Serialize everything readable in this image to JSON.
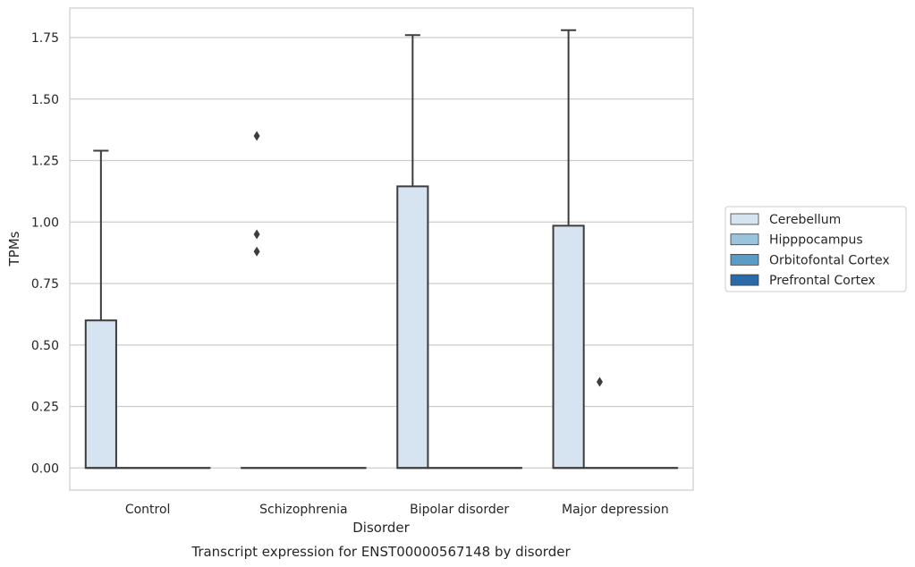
{
  "chart_data": {
    "type": "box",
    "xlabel": "Disorder",
    "ylabel": "TPMs",
    "caption": "Transcript expression for ENST00000567148 by disorder",
    "categories": [
      "Control",
      "Schizophrenia",
      "Bipolar disorder",
      "Major depression"
    ],
    "yticks": [
      "0.00",
      "0.25",
      "0.50",
      "0.75",
      "1.00",
      "1.25",
      "1.50",
      "1.75"
    ],
    "ylim": [
      -0.09,
      1.87
    ],
    "grid": true,
    "legend_position": "right",
    "series": [
      {
        "name": "Cerebellum",
        "color": "#d6e3f0",
        "boxes": [
          {
            "q1": 0,
            "median": 0,
            "q3": 0.6,
            "whisker_low": 0,
            "whisker_high": 1.29,
            "outliers": []
          },
          {
            "q1": 0,
            "median": 0,
            "q3": 0,
            "whisker_low": 0,
            "whisker_high": 0,
            "outliers": [
              1.35,
              0.95,
              0.88
            ]
          },
          {
            "q1": 0,
            "median": 0,
            "q3": 1.145,
            "whisker_low": 0,
            "whisker_high": 1.76,
            "outliers": []
          },
          {
            "q1": 0,
            "median": 0,
            "q3": 0.985,
            "whisker_low": 0,
            "whisker_high": 1.78,
            "outliers": []
          }
        ]
      },
      {
        "name": "Hipppocampus",
        "color": "#9cc3dc",
        "boxes": [
          {
            "q1": 0,
            "median": 0,
            "q3": 0,
            "whisker_low": 0,
            "whisker_high": 0,
            "outliers": []
          },
          {
            "q1": 0,
            "median": 0,
            "q3": 0,
            "whisker_low": 0,
            "whisker_high": 0,
            "outliers": []
          },
          {
            "q1": 0,
            "median": 0,
            "q3": 0,
            "whisker_low": 0,
            "whisker_high": 0,
            "outliers": []
          },
          {
            "q1": 0,
            "median": 0,
            "q3": 0,
            "whisker_low": 0,
            "whisker_high": 0,
            "outliers": [
              0.35
            ]
          }
        ]
      },
      {
        "name": "Orbitofontal Cortex",
        "color": "#5b9cc7",
        "boxes": [
          {
            "q1": 0,
            "median": 0,
            "q3": 0,
            "whisker_low": 0,
            "whisker_high": 0,
            "outliers": []
          },
          {
            "q1": 0,
            "median": 0,
            "q3": 0,
            "whisker_low": 0,
            "whisker_high": 0,
            "outliers": []
          },
          {
            "q1": 0,
            "median": 0,
            "q3": 0,
            "whisker_low": 0,
            "whisker_high": 0,
            "outliers": []
          },
          {
            "q1": 0,
            "median": 0,
            "q3": 0,
            "whisker_low": 0,
            "whisker_high": 0,
            "outliers": []
          }
        ]
      },
      {
        "name": "Prefrontal Cortex",
        "color": "#2a6aa9",
        "boxes": [
          {
            "q1": 0,
            "median": 0,
            "q3": 0,
            "whisker_low": 0,
            "whisker_high": 0,
            "outliers": []
          },
          {
            "q1": 0,
            "median": 0,
            "q3": 0,
            "whisker_low": 0,
            "whisker_high": 0,
            "outliers": []
          },
          {
            "q1": 0,
            "median": 0,
            "q3": 0,
            "whisker_low": 0,
            "whisker_high": 0,
            "outliers": []
          },
          {
            "q1": 0,
            "median": 0,
            "q3": 0,
            "whisker_low": 0,
            "whisker_high": 0,
            "outliers": []
          }
        ]
      }
    ],
    "colors": {
      "grid": "#cccccc",
      "frame": "#cccccc",
      "box_edge": "#3c3c3c"
    }
  }
}
